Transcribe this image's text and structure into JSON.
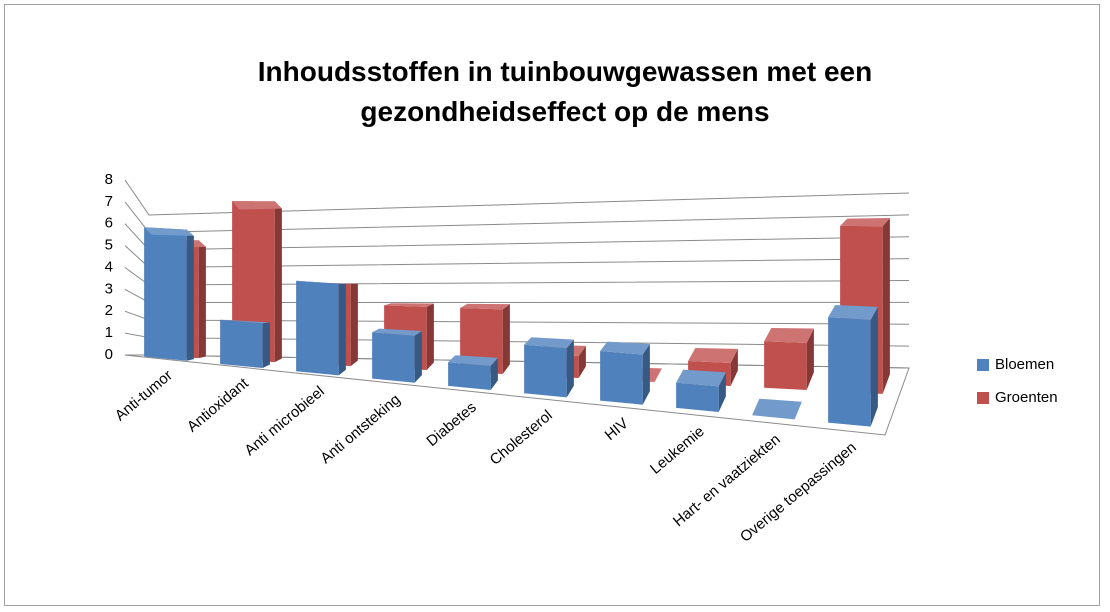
{
  "chart_data": {
    "type": "bar3d",
    "title": "Inhoudsstoffen in tuinbouwgewassen met een gezondheidseffect op de mens",
    "categories": [
      "Anti-tumor",
      "Antioxidant",
      "Anti microbieel",
      "Anti ontsteking",
      "Diabetes",
      "Cholesterol",
      "HIV",
      "Leukemie",
      "Hart- en vaatziekten",
      "Overige toepassingen"
    ],
    "series": [
      {
        "name": "Bloemen",
        "color": "#4f81bd",
        "values": [
          6,
          2,
          4,
          2,
          1,
          2,
          2,
          1,
          0,
          4
        ]
      },
      {
        "name": "Groenten",
        "color": "#c0504d",
        "values": [
          6,
          8,
          4,
          3,
          3,
          1,
          0,
          1,
          2,
          7
        ]
      }
    ],
    "ylim": [
      0,
      8
    ],
    "yticks": [
      0,
      1,
      2,
      3,
      4,
      5,
      6,
      7,
      8
    ],
    "grid": true,
    "legend": "right"
  }
}
